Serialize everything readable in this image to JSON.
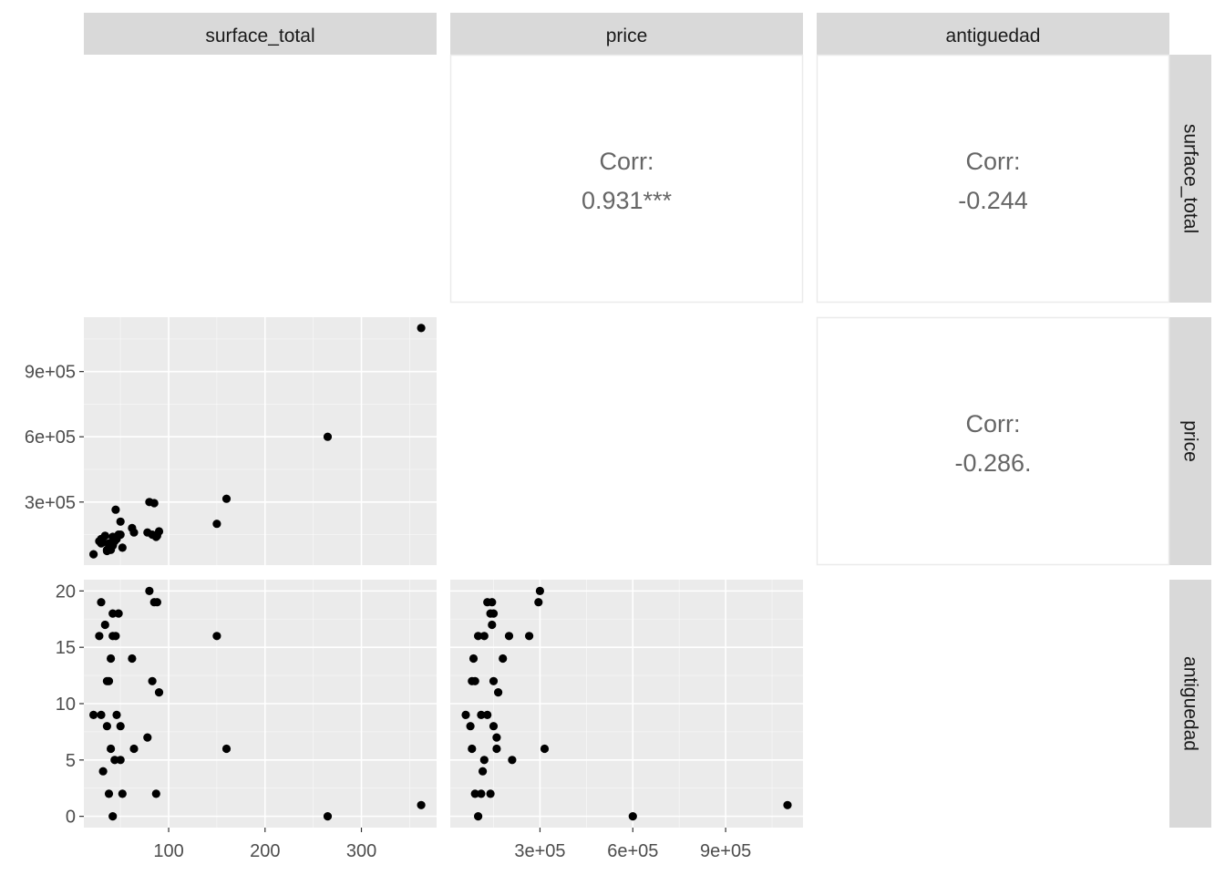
{
  "variables": [
    "surface_total",
    "price",
    "antiguedad"
  ],
  "colors": {
    "strip_bg": "#d9d9d9",
    "panel_bg": "#ebebeb",
    "grid_major": "#ffffff",
    "point": "#000000",
    "corr_text": "#666666",
    "tick_text": "#4d4d4d",
    "corr_border": "#ebebeb"
  },
  "chart_data": {
    "type": "scatter",
    "layout": "pairs-matrix",
    "axes": {
      "surface_total": {
        "range": [
          12,
          378
        ],
        "ticks": [
          100,
          200,
          300
        ],
        "tick_labels": [
          "100",
          "200",
          "300"
        ]
      },
      "price": {
        "range": [
          10000,
          1150000
        ],
        "ticks": [
          300000,
          600000,
          900000
        ],
        "tick_labels": [
          "3e+05",
          "6e+05",
          "9e+05"
        ]
      },
      "antiguedad": {
        "range": [
          -1,
          21
        ],
        "ticks": [
          0,
          5,
          10,
          15,
          20
        ],
        "tick_labels": [
          "0",
          "5",
          "10",
          "15",
          "20"
        ]
      }
    },
    "correlations": [
      {
        "row": "surface_total",
        "col": "price",
        "label": "Corr:",
        "value": "0.931***"
      },
      {
        "row": "surface_total",
        "col": "antiguedad",
        "label": "Corr:",
        "value": "-0.244"
      },
      {
        "row": "price",
        "col": "antiguedad",
        "label": "Corr:",
        "value": "-0.286."
      }
    ],
    "points": {
      "surface_total": [
        22,
        30,
        30,
        34,
        36,
        38,
        40,
        42,
        42,
        45,
        48,
        50,
        52,
        28,
        32,
        36,
        38,
        44,
        46,
        40,
        42,
        50,
        62,
        64,
        80,
        85,
        83,
        88,
        90,
        87,
        78,
        150,
        160,
        265,
        362
      ],
      "price": [
        60000,
        110000,
        130000,
        145000,
        80000,
        90000,
        85000,
        100000,
        140000,
        265000,
        150000,
        210000,
        90000,
        120000,
        115000,
        75000,
        110000,
        120000,
        130000,
        80000,
        100000,
        150000,
        180000,
        160000,
        300000,
        295000,
        150000,
        145000,
        165000,
        140000,
        160000,
        200000,
        315000,
        600000,
        1100000
      ],
      "antiguedad": [
        9,
        9,
        19,
        17,
        12,
        12,
        14,
        16,
        18,
        16,
        18,
        5,
        2,
        16,
        4,
        8,
        2,
        5,
        9,
        6,
        0,
        8,
        14,
        6,
        20,
        19,
        12,
        19,
        11,
        2,
        7,
        16,
        6,
        0,
        1
      ]
    }
  }
}
